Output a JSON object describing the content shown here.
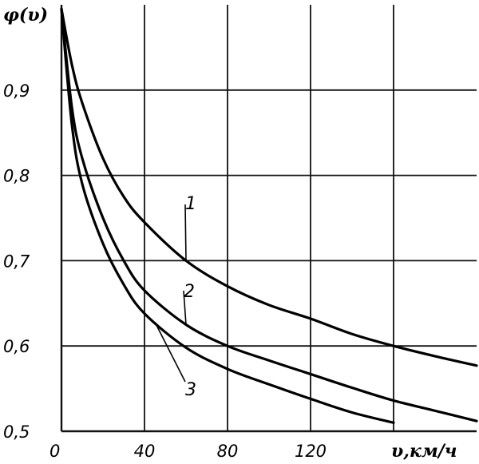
{
  "chart_data": {
    "type": "line",
    "ylabel": "φ(υ)",
    "xlabel": "υ,км/ч",
    "xlim": [
      0,
      200
    ],
    "ylim": [
      0.5,
      1.0
    ],
    "grid": true,
    "x_ticks": [
      {
        "value": 0,
        "label": "0"
      },
      {
        "value": 40,
        "label": "40"
      },
      {
        "value": 80,
        "label": "80"
      },
      {
        "value": 120,
        "label": "120"
      }
    ],
    "y_ticks": [
      {
        "value": 0.9,
        "label": "0,9"
      },
      {
        "value": 0.8,
        "label": "0,8"
      },
      {
        "value": 0.7,
        "label": "0,7"
      },
      {
        "value": 0.6,
        "label": "0,6"
      },
      {
        "value": 0.5,
        "label": "0,5"
      }
    ],
    "series": [
      {
        "name": "1",
        "x": [
          0,
          5,
          10,
          20,
          30,
          40,
          60,
          80,
          100,
          120,
          140,
          160,
          180,
          200
        ],
        "y": [
          0.995,
          0.93,
          0.885,
          0.82,
          0.775,
          0.745,
          0.7,
          0.67,
          0.648,
          0.632,
          0.614,
          0.6,
          0.588,
          0.577
        ]
      },
      {
        "name": "2",
        "x": [
          0,
          5,
          10,
          20,
          30,
          40,
          60,
          80,
          100,
          120,
          140,
          160,
          180,
          200
        ],
        "y": [
          0.995,
          0.88,
          0.82,
          0.75,
          0.7,
          0.665,
          0.625,
          0.6,
          0.583,
          0.567,
          0.551,
          0.536,
          0.524,
          0.512
        ]
      },
      {
        "name": "3",
        "x": [
          0,
          5,
          10,
          20,
          30,
          40,
          60,
          80,
          100,
          120,
          140,
          160
        ],
        "y": [
          0.995,
          0.86,
          0.79,
          0.72,
          0.672,
          0.638,
          0.598,
          0.573,
          0.555,
          0.538,
          0.522,
          0.51
        ]
      }
    ]
  }
}
